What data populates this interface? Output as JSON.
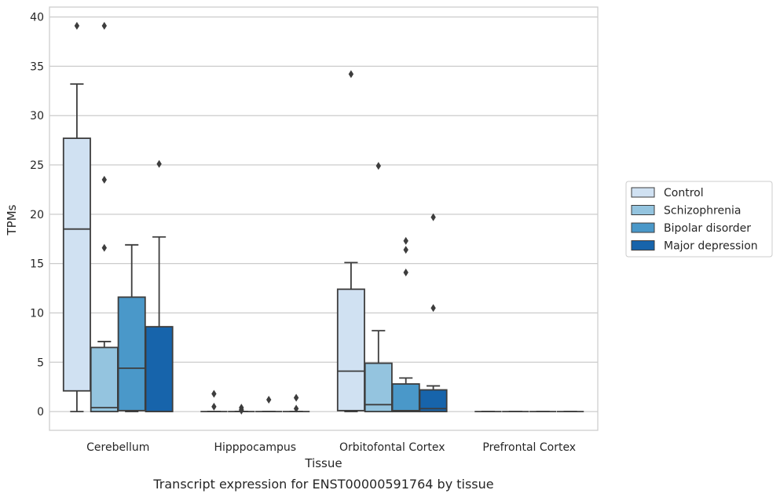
{
  "chart_data": {
    "type": "box",
    "title": "",
    "caption": "Transcript expression for ENST00000591764 by tissue",
    "xlabel": "Tissue",
    "ylabel": "TPMs",
    "ylim": [
      -1.9,
      41
    ],
    "yticks": [
      0,
      5,
      10,
      15,
      20,
      25,
      30,
      35,
      40
    ],
    "grid": true,
    "legend_position": "right",
    "categories": [
      "Cerebellum",
      "Hipppocampus",
      "Orbitofontal Cortex",
      "Prefrontal Cortex"
    ],
    "series": [
      {
        "name": "Control",
        "color": "#d0e1f2",
        "boxes": [
          {
            "whislo": 0.0,
            "q1": 2.1,
            "med": 18.5,
            "q3": 27.7,
            "whishi": 33.2,
            "fliers": [
              39.1
            ]
          },
          {
            "whislo": 0.0,
            "q1": 0.0,
            "med": 0.0,
            "q3": 0.0,
            "whishi": 0.0,
            "fliers": [
              1.8,
              0.5
            ]
          },
          {
            "whislo": 0.0,
            "q1": 0.1,
            "med": 4.1,
            "q3": 12.4,
            "whishi": 15.1,
            "fliers": [
              34.2
            ]
          },
          {
            "whislo": 0.0,
            "q1": 0.0,
            "med": 0.0,
            "q3": 0.0,
            "whishi": 0.0,
            "fliers": []
          }
        ]
      },
      {
        "name": "Schizophrenia",
        "color": "#94c4df",
        "boxes": [
          {
            "whislo": 0.0,
            "q1": 0.0,
            "med": 0.4,
            "q3": 6.5,
            "whishi": 7.1,
            "fliers": [
              23.5,
              16.6,
              39.1
            ]
          },
          {
            "whislo": 0.0,
            "q1": 0.0,
            "med": 0.0,
            "q3": 0.0,
            "whishi": 0.0,
            "fliers": [
              0.4,
              0.2,
              0.1
            ]
          },
          {
            "whislo": 0.0,
            "q1": 0.0,
            "med": 0.7,
            "q3": 4.9,
            "whishi": 8.2,
            "fliers": [
              24.9
            ]
          },
          {
            "whislo": 0.0,
            "q1": 0.0,
            "med": 0.0,
            "q3": 0.0,
            "whishi": 0.0,
            "fliers": []
          }
        ]
      },
      {
        "name": "Bipolar disorder",
        "color": "#4a98c9",
        "boxes": [
          {
            "whislo": 0.0,
            "q1": 0.1,
            "med": 4.4,
            "q3": 11.6,
            "whishi": 16.9,
            "fliers": []
          },
          {
            "whislo": 0.0,
            "q1": 0.0,
            "med": 0.0,
            "q3": 0.0,
            "whishi": 0.0,
            "fliers": [
              1.2
            ]
          },
          {
            "whislo": 0.0,
            "q1": 0.0,
            "med": 0.1,
            "q3": 2.8,
            "whishi": 3.4,
            "fliers": [
              17.3,
              16.4,
              14.1
            ]
          },
          {
            "whislo": 0.0,
            "q1": 0.0,
            "med": 0.0,
            "q3": 0.0,
            "whishi": 0.0,
            "fliers": []
          }
        ]
      },
      {
        "name": "Major depression",
        "color": "#1764ab",
        "boxes": [
          {
            "whislo": 0.0,
            "q1": 0.0,
            "med": 0.0,
            "q3": 8.6,
            "whishi": 17.7,
            "fliers": [
              25.1
            ]
          },
          {
            "whislo": 0.0,
            "q1": 0.0,
            "med": 0.0,
            "q3": 0.0,
            "whishi": 0.0,
            "fliers": [
              1.4,
              0.3
            ]
          },
          {
            "whislo": 0.0,
            "q1": 0.0,
            "med": 0.3,
            "q3": 2.2,
            "whishi": 2.6,
            "fliers": [
              19.7,
              10.5
            ]
          },
          {
            "whislo": 0.0,
            "q1": 0.0,
            "med": 0.0,
            "q3": 0.0,
            "whishi": 0.0,
            "fliers": []
          }
        ]
      }
    ]
  }
}
